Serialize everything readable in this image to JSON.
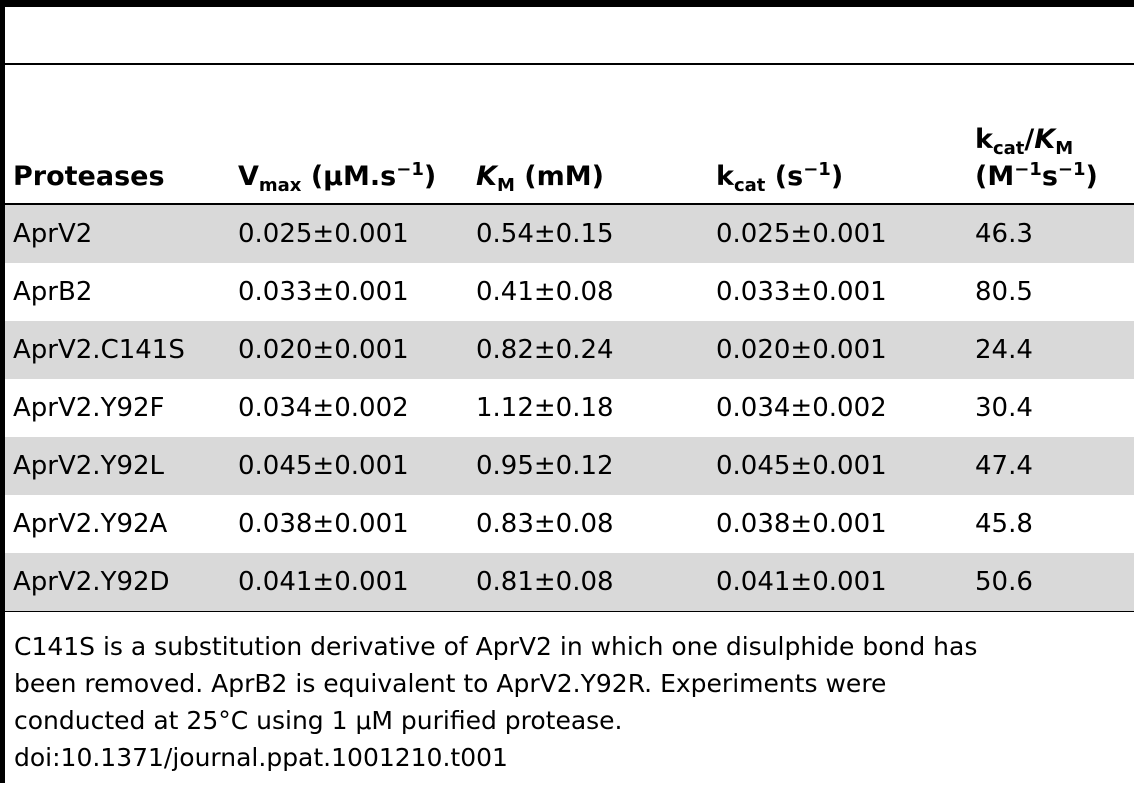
{
  "table": {
    "headers": {
      "proteases": "Proteases",
      "vmax": {
        "main": "V",
        "sub": "max",
        "unit_open": " (μM.s",
        "sup": "−1",
        "unit_close": ")"
      },
      "km": {
        "main": "K",
        "sub": "M",
        "unit": " (mM)"
      },
      "kcat": {
        "main": "k",
        "sub": "cat",
        "unit_open": " (s",
        "sup": "−1",
        "unit_close": ")"
      },
      "kcat_km": {
        "line1": {
          "k": "k",
          "k_sub": "cat",
          "slash": "/",
          "K": "K",
          "K_sub": "M"
        },
        "line2": {
          "open": "(M",
          "sup1": "−1",
          "s": "s",
          "sup2": "−1",
          "close": ")"
        }
      }
    },
    "rows": [
      {
        "protease": "AprV2",
        "vmax": "0.025±0.001",
        "km": "0.54±0.15",
        "kcat": "0.025±0.001",
        "kcat_km": "46.3"
      },
      {
        "protease": "AprB2",
        "vmax": "0.033±0.001",
        "km": "0.41±0.08",
        "kcat": "0.033±0.001",
        "kcat_km": "80.5"
      },
      {
        "protease": "AprV2.C141S",
        "vmax": "0.020±0.001",
        "km": "0.82±0.24",
        "kcat": "0.020±0.001",
        "kcat_km": "24.4"
      },
      {
        "protease": "AprV2.Y92F",
        "vmax": "0.034±0.002",
        "km": "1.12±0.18",
        "kcat": "0.034±0.002",
        "kcat_km": "30.4"
      },
      {
        "protease": "AprV2.Y92L",
        "vmax": "0.045±0.001",
        "km": "0.95±0.12",
        "kcat": "0.045±0.001",
        "kcat_km": "47.4"
      },
      {
        "protease": "AprV2.Y92A",
        "vmax": "0.038±0.001",
        "km": "0.83±0.08",
        "kcat": "0.038±0.001",
        "kcat_km": "45.8"
      },
      {
        "protease": "AprV2.Y92D",
        "vmax": "0.041±0.001",
        "km": "0.81±0.08",
        "kcat": "0.041±0.001",
        "kcat_km": "50.6"
      }
    ],
    "row_shading": [
      "#d9d9d9",
      "#ffffff"
    ]
  },
  "footnote": {
    "lines": [
      "C141S is a substitution derivative of AprV2 in which one disulphide bond has",
      "been removed. AprB2 is equivalent to AprV2.Y92R. Experiments were",
      "conducted at 25°C using 1 μM purified protease.",
      "doi:10.1371/journal.ppat.1001210.t001"
    ]
  }
}
